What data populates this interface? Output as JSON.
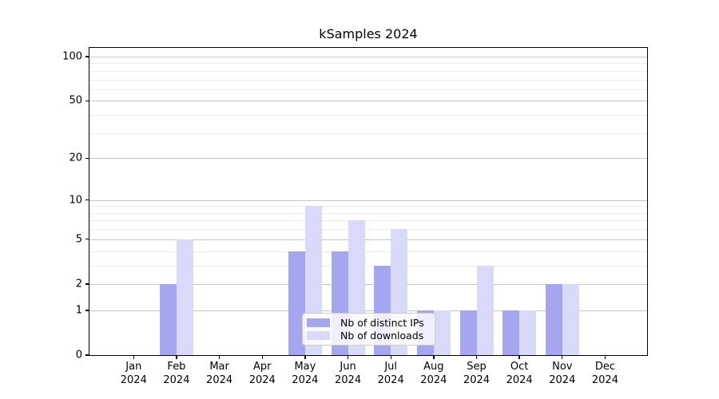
{
  "chart_data": {
    "type": "bar",
    "title": "kSamples 2024",
    "xlabel": "",
    "ylabel": "",
    "y_scale": "log10(1+x)",
    "ylim": [
      0,
      115
    ],
    "grid_on": true,
    "legend_position": "bottom-center",
    "categories": [
      {
        "month": "Jan",
        "year": "2024"
      },
      {
        "month": "Feb",
        "year": "2024"
      },
      {
        "month": "Mar",
        "year": "2024"
      },
      {
        "month": "Apr",
        "year": "2024"
      },
      {
        "month": "May",
        "year": "2024"
      },
      {
        "month": "Jun",
        "year": "2024"
      },
      {
        "month": "Jul",
        "year": "2024"
      },
      {
        "month": "Aug",
        "year": "2024"
      },
      {
        "month": "Sep",
        "year": "2024"
      },
      {
        "month": "Oct",
        "year": "2024"
      },
      {
        "month": "Nov",
        "year": "2024"
      },
      {
        "month": "Dec",
        "year": "2024"
      }
    ],
    "series": [
      {
        "name": "Nb of distinct IPs",
        "color": "#a6a6f0",
        "values": [
          0,
          2,
          0,
          0,
          4,
          4,
          3,
          1,
          1,
          1,
          2,
          0
        ]
      },
      {
        "name": "Nb of downloads",
        "color": "#d9d9f9",
        "values": [
          0,
          5,
          0,
          0,
          9,
          7,
          6,
          1,
          3,
          1,
          2,
          0
        ]
      }
    ],
    "yticks": [
      {
        "value": 100,
        "label": "100"
      },
      {
        "value": 50,
        "label": "50"
      },
      {
        "value": 20,
        "label": "20"
      },
      {
        "value": 10,
        "label": "10"
      },
      {
        "value": 5,
        "label": "5"
      },
      {
        "value": 2,
        "label": "2"
      },
      {
        "value": 1,
        "label": "1"
      },
      {
        "value": 0,
        "label": "0"
      }
    ],
    "gridlines": {
      "major": [
        1,
        2,
        5,
        10,
        20,
        50,
        100
      ],
      "minor": [
        3,
        4,
        6,
        7,
        8,
        9,
        30,
        40,
        60,
        70,
        80,
        90
      ]
    },
    "colors": {
      "major_grid": "#c6c6c6",
      "minor_grid": "#ececec",
      "spine": "#000000",
      "background": "#ffffff"
    }
  }
}
